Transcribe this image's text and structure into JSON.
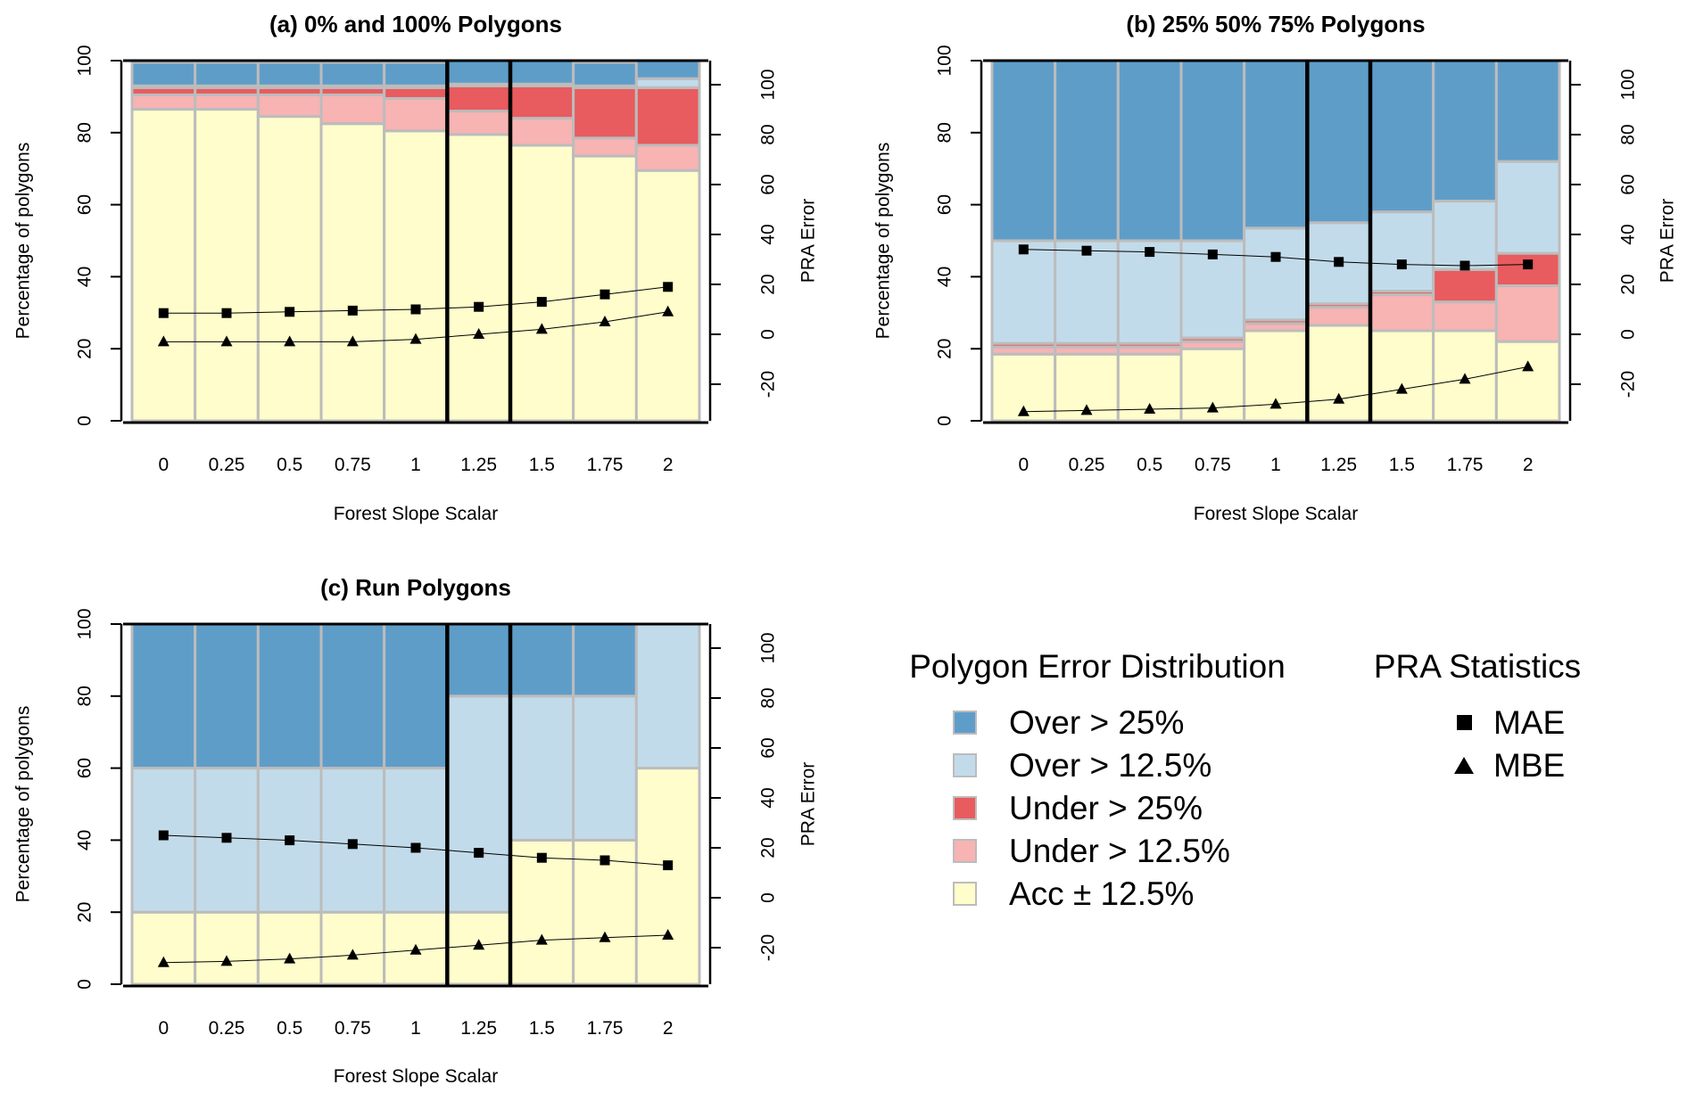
{
  "colors": {
    "over25": "#5f9dc9",
    "over12": "#c2dbea",
    "under25": "#e85b5e",
    "under12": "#f8b3b3",
    "acc": "#fefdcb",
    "divider": "#bcbcbc"
  },
  "chart_data": [
    {
      "type": "bar",
      "title": "(a) 0% and 100% Polygons",
      "xlabel": "Forest Slope Scalar",
      "ylabel": "Percentage of polygons",
      "y2label": "PRA Error",
      "categories": [
        "0",
        "0.25",
        "0.5",
        "0.75",
        "1",
        "1.25",
        "1.5",
        "1.75",
        "2"
      ],
      "ylim": [
        0,
        100
      ],
      "y2lim": [
        -30,
        105
      ],
      "yticks": [
        "0",
        "20",
        "40",
        "60",
        "80",
        "100"
      ],
      "y2ticks": [
        "-20",
        "0",
        "20",
        "40",
        "60",
        "80",
        "100"
      ],
      "vlines_after_category_index": [
        4,
        5
      ],
      "stacked_series": [
        {
          "name": "Acc ± 12.5%",
          "color_key": "acc",
          "values": [
            86.5,
            86.5,
            84.5,
            82.5,
            80.5,
            79.5,
            76.5,
            73.5,
            69.5
          ]
        },
        {
          "name": "Under > 12.5%",
          "color_key": "under12",
          "values": [
            4,
            4,
            6,
            8,
            9,
            6.5,
            7.5,
            5,
            7
          ]
        },
        {
          "name": "Under > 25%",
          "color_key": "under25",
          "values": [
            2,
            2,
            2,
            2,
            3,
            7,
            9,
            14,
            16
          ]
        },
        {
          "name": "Over > 12.5%",
          "color_key": "over12",
          "values": [
            0.5,
            0.5,
            0.5,
            0.5,
            0.5,
            0.5,
            0.5,
            0.5,
            2.5
          ]
        },
        {
          "name": "Over > 25%",
          "color_key": "over25",
          "values": [
            6.5,
            6.5,
            6.5,
            6.5,
            6.5,
            6.5,
            6.5,
            6.5,
            5
          ]
        }
      ],
      "lines": [
        {
          "name": "MAE",
          "marker": "square",
          "values": [
            8.5,
            8.5,
            9,
            9.5,
            10,
            11,
            13,
            16,
            19
          ]
        },
        {
          "name": "MBE",
          "marker": "triangle",
          "values": [
            -3,
            -3,
            -3,
            -3,
            -2,
            0,
            2,
            5,
            9
          ]
        }
      ]
    },
    {
      "type": "bar",
      "title": "(b) 25% 50% 75% Polygons",
      "xlabel": "Forest Slope Scalar",
      "ylabel": "Percentage of polygons",
      "y2label": "PRA Error",
      "categories": [
        "0",
        "0.25",
        "0.5",
        "0.75",
        "1",
        "1.25",
        "1.5",
        "1.75",
        "2"
      ],
      "ylim": [
        0,
        100
      ],
      "y2lim": [
        -30,
        105
      ],
      "yticks": [
        "0",
        "20",
        "40",
        "60",
        "80",
        "100"
      ],
      "y2ticks": [
        "-20",
        "0",
        "20",
        "40",
        "60",
        "80",
        "100"
      ],
      "vlines_after_category_index": [
        4,
        5
      ],
      "stacked_series": [
        {
          "name": "Acc ± 12.5%",
          "color_key": "acc",
          "values": [
            18.5,
            18.5,
            18.5,
            20,
            25,
            26.5,
            25,
            25,
            22
          ]
        },
        {
          "name": "Under > 12.5%",
          "color_key": "under12",
          "values": [
            2,
            2,
            2,
            2,
            2,
            5,
            10,
            8,
            15.5
          ]
        },
        {
          "name": "Under > 25%",
          "color_key": "under25",
          "values": [
            1,
            1,
            1,
            1,
            1,
            1,
            1,
            9,
            9
          ]
        },
        {
          "name": "Over > 12.5%",
          "color_key": "over12",
          "values": [
            28.5,
            28.5,
            28.5,
            27,
            25.5,
            22.5,
            22,
            19,
            25.5
          ]
        },
        {
          "name": "Over > 25%",
          "color_key": "over25",
          "values": [
            50,
            50,
            50,
            50,
            46.5,
            45,
            42,
            39,
            28
          ]
        }
      ],
      "lines": [
        {
          "name": "MAE",
          "marker": "square",
          "values": [
            34,
            33.5,
            33,
            32,
            31,
            29,
            28,
            27.5,
            28
          ]
        },
        {
          "name": "MBE",
          "marker": "triangle",
          "values": [
            -31,
            -30.5,
            -30,
            -29.5,
            -28,
            -26,
            -22,
            -18,
            -13
          ]
        }
      ]
    },
    {
      "type": "bar",
      "title": "(c) Run Polygons",
      "xlabel": "Forest Slope Scalar",
      "ylabel": "Percentage of polygons",
      "y2label": "PRA Error",
      "categories": [
        "0",
        "0.25",
        "0.5",
        "0.75",
        "1",
        "1.25",
        "1.5",
        "1.75",
        "2"
      ],
      "ylim": [
        0,
        100
      ],
      "y2lim": [
        -30,
        105
      ],
      "yticks": [
        "0",
        "20",
        "40",
        "60",
        "80",
        "100"
      ],
      "y2ticks": [
        "-20",
        "0",
        "20",
        "40",
        "60",
        "80",
        "100"
      ],
      "vlines_after_category_index": [
        4,
        5
      ],
      "stacked_series": [
        {
          "name": "Acc ± 12.5%",
          "color_key": "acc",
          "values": [
            20,
            20,
            20,
            20,
            20,
            20,
            40,
            40,
            60
          ]
        },
        {
          "name": "Under > 12.5%",
          "color_key": "under12",
          "values": [
            0,
            0,
            0,
            0,
            0,
            0,
            0,
            0,
            0
          ]
        },
        {
          "name": "Under > 25%",
          "color_key": "under25",
          "values": [
            0,
            0,
            0,
            0,
            0,
            0,
            0,
            0,
            0
          ]
        },
        {
          "name": "Over > 12.5%",
          "color_key": "over12",
          "values": [
            40,
            40,
            40,
            40,
            40,
            60,
            40,
            40,
            40
          ]
        },
        {
          "name": "Over > 25%",
          "color_key": "over25",
          "values": [
            40,
            40,
            40,
            40,
            40,
            20,
            20,
            20,
            0
          ]
        }
      ],
      "lines": [
        {
          "name": "MAE",
          "marker": "square",
          "values": [
            25,
            24,
            23,
            21.5,
            20,
            18,
            16,
            15,
            13
          ]
        },
        {
          "name": "MBE",
          "marker": "triangle",
          "values": [
            -26,
            -25.5,
            -24.5,
            -23,
            -21,
            -19,
            -17,
            -16,
            -15
          ]
        }
      ]
    }
  ],
  "legend": {
    "title": "Polygon Error Distribution",
    "items": [
      {
        "label": "Over > 25%",
        "color_key": "over25"
      },
      {
        "label": "Over > 12.5%",
        "color_key": "over12"
      },
      {
        "label": "Under > 25%",
        "color_key": "under25"
      },
      {
        "label": "Under > 12.5%",
        "color_key": "under12"
      },
      {
        "label": "Acc ± 12.5%",
        "color_key": "acc"
      }
    ]
  },
  "stats_legend": {
    "title": "PRA Statistics",
    "items": [
      {
        "label": "MAE",
        "marker": "square"
      },
      {
        "label": "MBE",
        "marker": "triangle"
      }
    ]
  }
}
